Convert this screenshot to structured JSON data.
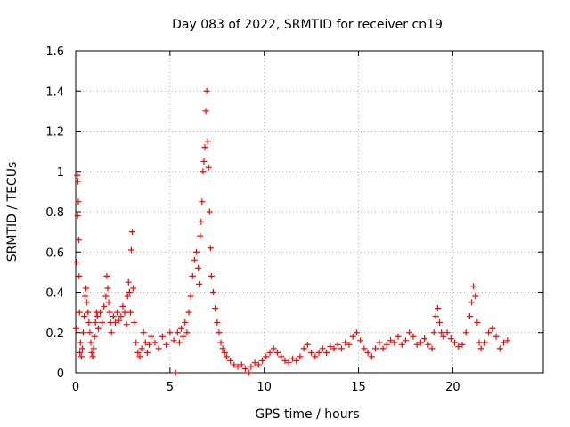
{
  "chart_data": {
    "type": "scatter",
    "title": "Day 083 of 2022, SRMTID for receiver cn19",
    "xlabel": "GPS time / hours",
    "ylabel": "SRMTID / TECUs",
    "xlim": [
      0,
      24.8
    ],
    "ylim": [
      0,
      1.6
    ],
    "xticks": [
      0,
      5,
      10,
      15,
      20
    ],
    "xtick_labels": [
      "0",
      "5",
      "10",
      "15",
      "20"
    ],
    "yticks": [
      0,
      0.2,
      0.4,
      0.6,
      0.8,
      1,
      1.2,
      1.4,
      1.6
    ],
    "ytick_labels": [
      "0",
      "0.2",
      "0.4",
      "0.6",
      "0.8",
      "1",
      "1.2",
      "1.4",
      "1.6"
    ],
    "grid": true,
    "marker": "plus",
    "colors": {
      "points": "#ff0000",
      "grid": "#a0a0a0",
      "axes": "#000000"
    },
    "series": [
      {
        "name": "SRMTID cn19",
        "points": [
          [
            0.02,
            0.22
          ],
          [
            0.05,
            0.55
          ],
          [
            0.08,
            0.98
          ],
          [
            0.1,
            0.78
          ],
          [
            0.12,
            0.95
          ],
          [
            0.14,
            0.85
          ],
          [
            0.16,
            0.66
          ],
          [
            0.18,
            0.48
          ],
          [
            0.2,
            0.3
          ],
          [
            0.22,
            0.1
          ],
          [
            0.25,
            0.15
          ],
          [
            0.3,
            0.08
          ],
          [
            0.35,
            0.12
          ],
          [
            0.4,
            0.2
          ],
          [
            0.45,
            0.28
          ],
          [
            0.5,
            0.38
          ],
          [
            0.55,
            0.42
          ],
          [
            0.6,
            0.35
          ],
          [
            0.65,
            0.3
          ],
          [
            0.7,
            0.25
          ],
          [
            0.75,
            0.2
          ],
          [
            0.8,
            0.15
          ],
          [
            0.85,
            0.1
          ],
          [
            0.9,
            0.08
          ],
          [
            0.95,
            0.12
          ],
          [
            1.0,
            0.18
          ],
          [
            1.05,
            0.25
          ],
          [
            1.1,
            0.3
          ],
          [
            1.15,
            0.28
          ],
          [
            1.2,
            0.22
          ],
          [
            1.3,
            0.3
          ],
          [
            1.4,
            0.25
          ],
          [
            1.5,
            0.33
          ],
          [
            1.6,
            0.38
          ],
          [
            1.65,
            0.48
          ],
          [
            1.7,
            0.42
          ],
          [
            1.75,
            0.35
          ],
          [
            1.8,
            0.3
          ],
          [
            1.85,
            0.25
          ],
          [
            1.9,
            0.2
          ],
          [
            2.0,
            0.28
          ],
          [
            2.1,
            0.25
          ],
          [
            2.2,
            0.3
          ],
          [
            2.3,
            0.26
          ],
          [
            2.4,
            0.28
          ],
          [
            2.5,
            0.33
          ],
          [
            2.6,
            0.3
          ],
          [
            2.7,
            0.24
          ],
          [
            2.75,
            0.38
          ],
          [
            2.8,
            0.45
          ],
          [
            2.85,
            0.4
          ],
          [
            2.9,
            0.3
          ],
          [
            2.95,
            0.61
          ],
          [
            3.0,
            0.7
          ],
          [
            3.05,
            0.42
          ],
          [
            3.1,
            0.25
          ],
          [
            3.2,
            0.15
          ],
          [
            3.3,
            0.1
          ],
          [
            3.4,
            0.08
          ],
          [
            3.5,
            0.12
          ],
          [
            3.6,
            0.2
          ],
          [
            3.7,
            0.15
          ],
          [
            3.8,
            0.1
          ],
          [
            3.9,
            0.14
          ],
          [
            4.0,
            0.18
          ],
          [
            4.2,
            0.15
          ],
          [
            4.4,
            0.12
          ],
          [
            4.6,
            0.18
          ],
          [
            4.8,
            0.14
          ],
          [
            5.0,
            0.2
          ],
          [
            5.2,
            0.16
          ],
          [
            5.3,
            0.0
          ],
          [
            5.4,
            0.2
          ],
          [
            5.5,
            0.15
          ],
          [
            5.6,
            0.22
          ],
          [
            5.7,
            0.18
          ],
          [
            5.8,
            0.25
          ],
          [
            5.9,
            0.2
          ],
          [
            6.0,
            0.3
          ],
          [
            6.1,
            0.38
          ],
          [
            6.2,
            0.48
          ],
          [
            6.3,
            0.56
          ],
          [
            6.4,
            0.6
          ],
          [
            6.5,
            0.52
          ],
          [
            6.55,
            0.44
          ],
          [
            6.6,
            0.68
          ],
          [
            6.65,
            0.75
          ],
          [
            6.7,
            0.85
          ],
          [
            6.75,
            1.0
          ],
          [
            6.8,
            1.05
          ],
          [
            6.85,
            1.12
          ],
          [
            6.9,
            1.3
          ],
          [
            6.95,
            1.4
          ],
          [
            7.0,
            1.15
          ],
          [
            7.05,
            1.02
          ],
          [
            7.1,
            0.8
          ],
          [
            7.15,
            0.62
          ],
          [
            7.2,
            0.48
          ],
          [
            7.3,
            0.4
          ],
          [
            7.4,
            0.32
          ],
          [
            7.5,
            0.25
          ],
          [
            7.6,
            0.2
          ],
          [
            7.7,
            0.15
          ],
          [
            7.8,
            0.12
          ],
          [
            7.9,
            0.1
          ],
          [
            8.0,
            0.08
          ],
          [
            8.2,
            0.06
          ],
          [
            8.4,
            0.04
          ],
          [
            8.6,
            0.03
          ],
          [
            8.8,
            0.04
          ],
          [
            9.0,
            0.02
          ],
          [
            9.2,
            0.0
          ],
          [
            9.3,
            0.03
          ],
          [
            9.5,
            0.05
          ],
          [
            9.7,
            0.04
          ],
          [
            9.9,
            0.06
          ],
          [
            10.1,
            0.08
          ],
          [
            10.3,
            0.1
          ],
          [
            10.5,
            0.12
          ],
          [
            10.7,
            0.1
          ],
          [
            10.9,
            0.08
          ],
          [
            11.1,
            0.06
          ],
          [
            11.3,
            0.05
          ],
          [
            11.5,
            0.07
          ],
          [
            11.7,
            0.06
          ],
          [
            11.9,
            0.08
          ],
          [
            12.1,
            0.12
          ],
          [
            12.3,
            0.14
          ],
          [
            12.5,
            0.1
          ],
          [
            12.7,
            0.08
          ],
          [
            12.9,
            0.1
          ],
          [
            13.1,
            0.12
          ],
          [
            13.3,
            0.1
          ],
          [
            13.5,
            0.13
          ],
          [
            13.7,
            0.12
          ],
          [
            13.9,
            0.14
          ],
          [
            14.1,
            0.12
          ],
          [
            14.3,
            0.15
          ],
          [
            14.5,
            0.14
          ],
          [
            14.7,
            0.18
          ],
          [
            14.9,
            0.2
          ],
          [
            15.1,
            0.16
          ],
          [
            15.3,
            0.12
          ],
          [
            15.5,
            0.1
          ],
          [
            15.7,
            0.08
          ],
          [
            15.9,
            0.12
          ],
          [
            16.1,
            0.15
          ],
          [
            16.3,
            0.12
          ],
          [
            16.5,
            0.14
          ],
          [
            16.7,
            0.16
          ],
          [
            16.9,
            0.15
          ],
          [
            17.1,
            0.18
          ],
          [
            17.3,
            0.14
          ],
          [
            17.5,
            0.16
          ],
          [
            17.7,
            0.2
          ],
          [
            17.9,
            0.18
          ],
          [
            18.1,
            0.14
          ],
          [
            18.3,
            0.15
          ],
          [
            18.5,
            0.17
          ],
          [
            18.7,
            0.14
          ],
          [
            18.9,
            0.12
          ],
          [
            19.0,
            0.2
          ],
          [
            19.1,
            0.28
          ],
          [
            19.2,
            0.32
          ],
          [
            19.3,
            0.25
          ],
          [
            19.4,
            0.2
          ],
          [
            19.5,
            0.18
          ],
          [
            19.7,
            0.2
          ],
          [
            19.9,
            0.17
          ],
          [
            20.1,
            0.15
          ],
          [
            20.3,
            0.13
          ],
          [
            20.5,
            0.14
          ],
          [
            20.7,
            0.2
          ],
          [
            20.9,
            0.28
          ],
          [
            21.0,
            0.35
          ],
          [
            21.1,
            0.43
          ],
          [
            21.2,
            0.38
          ],
          [
            21.3,
            0.25
          ],
          [
            21.4,
            0.15
          ],
          [
            21.5,
            0.12
          ],
          [
            21.7,
            0.15
          ],
          [
            21.9,
            0.2
          ],
          [
            22.1,
            0.22
          ],
          [
            22.3,
            0.18
          ],
          [
            22.5,
            0.12
          ],
          [
            22.7,
            0.15
          ],
          [
            22.9,
            0.16
          ]
        ]
      }
    ]
  }
}
